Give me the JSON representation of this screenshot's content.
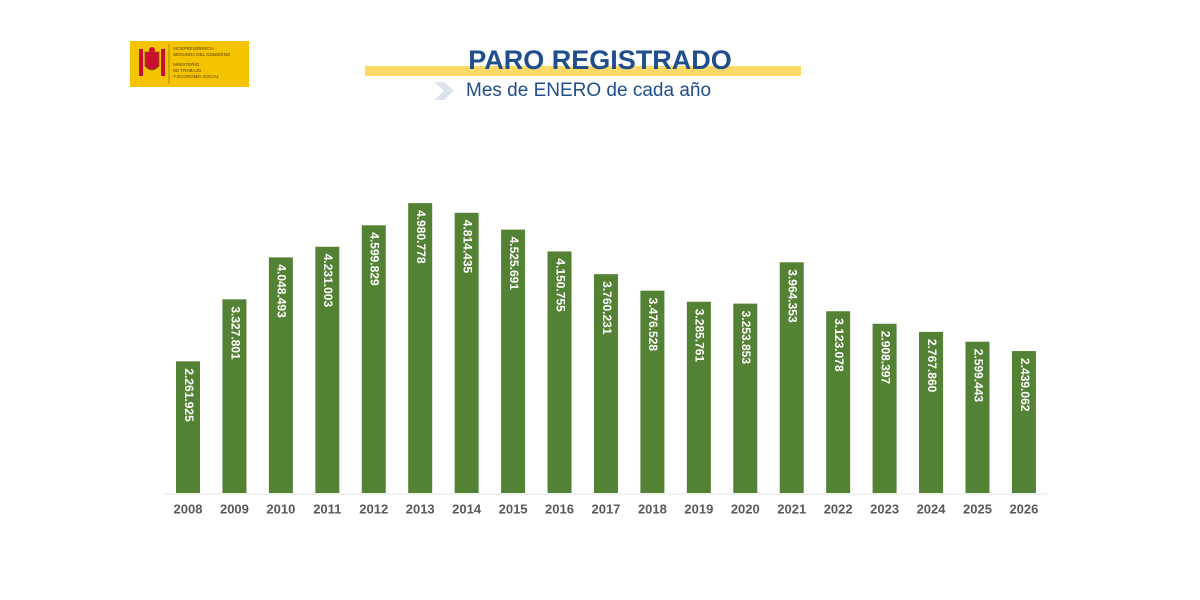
{
  "logo": {
    "lines": [
      "VICEPRESIDENCIA",
      "SEGUNDA DEL GOBIERNO",
      "MINISTERIO",
      "DE TRABAJO",
      "Y ECONOMÍA SOCIAL"
    ]
  },
  "chart_data": {
    "type": "bar",
    "title": "PARO REGISTRADO",
    "subtitle": "Mes de ENERO de cada año",
    "categories": [
      "2008",
      "2009",
      "2010",
      "2011",
      "2012",
      "2013",
      "2014",
      "2015",
      "2016",
      "2017",
      "2018",
      "2019",
      "2020",
      "2021",
      "2022",
      "2023",
      "2024",
      "2025",
      "2026"
    ],
    "values": [
      2261925,
      3327801,
      4048493,
      4231003,
      4599829,
      4980778,
      4814435,
      4525691,
      4150755,
      3760231,
      3476528,
      3285761,
      3253853,
      3964353,
      3123078,
      2908397,
      2767860,
      2599443,
      2439062
    ],
    "value_labels": [
      "2.261.925",
      "3.327.801",
      "4.048.493",
      "4.231.003",
      "4.599.829",
      "4.980.778",
      "4.814.435",
      "4.525.691",
      "4.150.755",
      "3.760.231",
      "3.476.528",
      "3.285.761",
      "3.253.853",
      "3.964.353",
      "3.123.078",
      "2.908.397",
      "2.767.860",
      "2.599.443",
      "2.439.062"
    ],
    "color": "#548235"
  }
}
